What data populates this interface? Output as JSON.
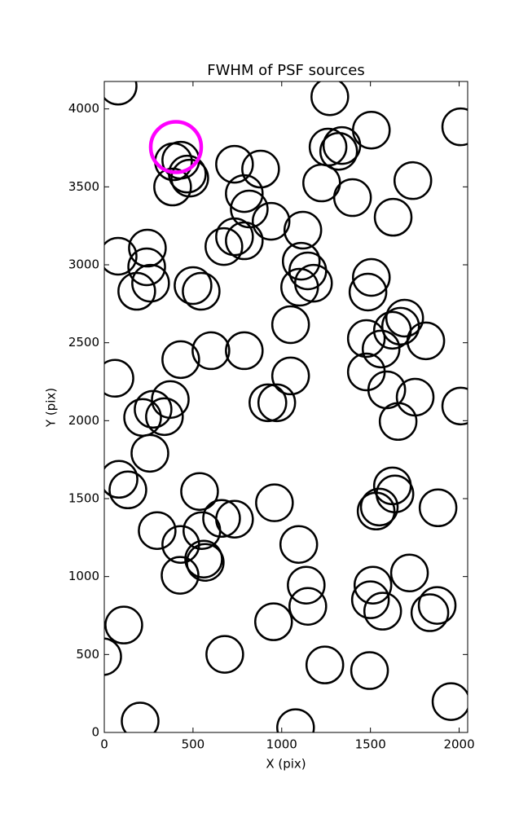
{
  "chart_data": {
    "type": "scatter",
    "title": "FWHM of PSF sources",
    "xlabel": "X (pix)",
    "ylabel": "Y (pix)",
    "xlim": [
      0,
      2048
    ],
    "ylim": [
      0,
      4176
    ],
    "xticks": [
      0,
      500,
      1000,
      1500,
      2000
    ],
    "yticks": [
      0,
      500,
      1000,
      1500,
      2000,
      2500,
      3000,
      3500,
      4000
    ],
    "grid": false,
    "series": [
      {
        "color": "#000000",
        "x": [
          78,
          1271,
          1505,
          2009,
          1261,
          1339,
          1321,
          734,
          881,
          390,
          431,
          468,
          482,
          385,
          1225,
          1739,
          1399,
          789,
          817,
          940,
          1628,
          1119,
          734,
          674,
          789,
          243,
          78,
          239,
          261,
          183,
          1110,
          1147,
          1179,
          1101,
          1505,
          1486,
          500,
          546,
          1050,
          1693,
          1670,
          1624,
          1812,
          1477,
          1560,
          431,
          601,
          789,
          60,
          1050,
          1477,
          1592,
          1752,
          2009,
          372,
          275,
          216,
          339,
          922,
          972,
          1656,
          257,
          83,
          133,
          537,
          959,
          1624,
          1638,
          1532,
          1550,
          1881,
          661,
          734,
          298,
          550,
          431,
          1096,
          569,
          560,
          427,
          1720,
          1138,
          1514,
          1500,
          1147,
          1569,
          1835,
          1876,
          110,
          954,
          -9,
          679,
          1243,
          1495,
          1954,
          202,
          1078
        ],
        "y": [
          4146,
          4078,
          3864,
          3885,
          3755,
          3765,
          3728,
          3645,
          3614,
          3661,
          3671,
          3582,
          3556,
          3499,
          3525,
          3540,
          3431,
          3457,
          3358,
          3279,
          3305,
          3222,
          3180,
          3117,
          3154,
          3107,
          3055,
          2987,
          2882,
          2830,
          3023,
          2961,
          2882,
          2856,
          2919,
          2825,
          2867,
          2830,
          2616,
          2658,
          2606,
          2580,
          2512,
          2527,
          2460,
          2392,
          2449,
          2449,
          2272,
          2287,
          2313,
          2198,
          2151,
          2094,
          2136,
          2073,
          2021,
          2026,
          2115,
          2115,
          1995,
          1791,
          1624,
          1556,
          1546,
          1473,
          1582,
          1530,
          1420,
          1446,
          1441,
          1373,
          1368,
          1295,
          1295,
          1206,
          1206,
          1091,
          1112,
          1008,
          1023,
          945,
          945,
          851,
          809,
          778,
          768,
          815,
          689,
          710,
          486,
          501,
          433,
          397,
          198,
          73,
          31
        ]
      },
      {
        "color": "#ff00ff",
        "x": [
          404
        ],
        "y": [
          3755
        ]
      }
    ]
  }
}
